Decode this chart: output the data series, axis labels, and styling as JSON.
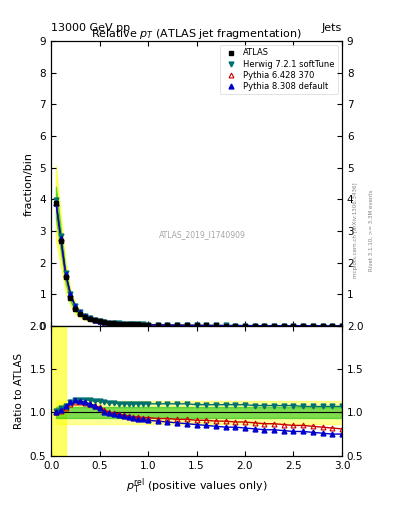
{
  "title": "Relative $p_T$ (ATLAS jet fragmentation)",
  "header_left": "13000 GeV pp",
  "header_right": "Jets",
  "ylabel_main": "fraction/bin",
  "ylabel_ratio": "Ratio to ATLAS",
  "watermark": "ATLAS_2019_I1740909",
  "right_label": "Rivet 3.1.10, >= 3.3M events",
  "right_label2": "mcplots.cern.ch [arXiv:1306.3436]",
  "main_xlim": [
    0,
    3
  ],
  "main_ylim": [
    0,
    9
  ],
  "ratio_ylim": [
    0.5,
    2
  ],
  "main_yticks": [
    0,
    1,
    2,
    3,
    4,
    5,
    6,
    7,
    8,
    9
  ],
  "ratio_yticks": [
    0.5,
    1.0,
    1.5,
    2.0
  ],
  "x_data": [
    0.05,
    0.1,
    0.15,
    0.2,
    0.25,
    0.3,
    0.35,
    0.4,
    0.45,
    0.5,
    0.55,
    0.6,
    0.65,
    0.7,
    0.75,
    0.8,
    0.85,
    0.9,
    0.95,
    1.0,
    1.1,
    1.2,
    1.3,
    1.4,
    1.5,
    1.6,
    1.7,
    1.8,
    1.9,
    2.0,
    2.1,
    2.2,
    2.3,
    2.4,
    2.5,
    2.6,
    2.7,
    2.8,
    2.9,
    3.0
  ],
  "atlas_y": [
    3.9,
    2.7,
    1.55,
    0.9,
    0.55,
    0.38,
    0.28,
    0.22,
    0.18,
    0.15,
    0.12,
    0.1,
    0.088,
    0.078,
    0.07,
    0.063,
    0.057,
    0.052,
    0.048,
    0.044,
    0.038,
    0.033,
    0.029,
    0.026,
    0.023,
    0.021,
    0.019,
    0.017,
    0.016,
    0.015,
    0.014,
    0.013,
    0.012,
    0.011,
    0.01,
    0.009,
    0.009,
    0.008,
    0.007,
    0.007
  ],
  "herwig_ratio": [
    1.02,
    1.05,
    1.08,
    1.12,
    1.14,
    1.15,
    1.15,
    1.14,
    1.13,
    1.13,
    1.12,
    1.11,
    1.11,
    1.1,
    1.1,
    1.1,
    1.1,
    1.1,
    1.1,
    1.1,
    1.1,
    1.1,
    1.1,
    1.1,
    1.09,
    1.09,
    1.09,
    1.09,
    1.09,
    1.09,
    1.08,
    1.08,
    1.08,
    1.08,
    1.08,
    1.07,
    1.07,
    1.07,
    1.07,
    1.07
  ],
  "pythia6_ratio": [
    1.0,
    1.02,
    1.05,
    1.1,
    1.12,
    1.12,
    1.11,
    1.1,
    1.08,
    1.06,
    1.03,
    1.0,
    0.99,
    0.98,
    0.97,
    0.96,
    0.95,
    0.95,
    0.94,
    0.94,
    0.93,
    0.93,
    0.92,
    0.92,
    0.91,
    0.91,
    0.9,
    0.9,
    0.89,
    0.89,
    0.88,
    0.87,
    0.87,
    0.86,
    0.85,
    0.85,
    0.84,
    0.83,
    0.82,
    0.81
  ],
  "pythia8_ratio": [
    1.0,
    1.03,
    1.07,
    1.12,
    1.14,
    1.13,
    1.12,
    1.1,
    1.08,
    1.05,
    1.01,
    0.99,
    0.98,
    0.97,
    0.96,
    0.95,
    0.94,
    0.93,
    0.92,
    0.91,
    0.9,
    0.89,
    0.88,
    0.87,
    0.86,
    0.85,
    0.84,
    0.83,
    0.83,
    0.82,
    0.81,
    0.8,
    0.8,
    0.79,
    0.78,
    0.78,
    0.77,
    0.76,
    0.75,
    0.75
  ],
  "atlas_color": "#000000",
  "herwig_color": "#007070",
  "pythia6_color": "#cc0000",
  "pythia8_color": "#0000cc",
  "band_yellow": "#ffff00",
  "band_green": "#00bb00"
}
